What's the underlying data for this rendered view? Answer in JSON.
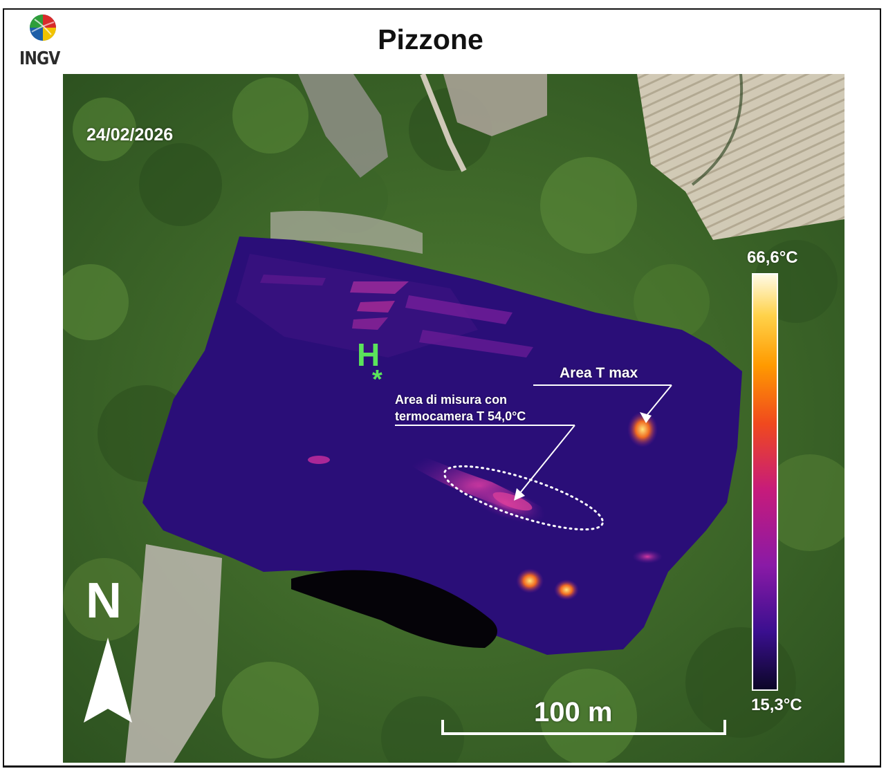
{
  "header": {
    "logo_text": "INGV",
    "title": "Pizzone"
  },
  "map": {
    "date": "24/02/2026",
    "heliport_label": "H",
    "heliport_marker": "*",
    "annotations": {
      "tmax": "Area T max",
      "misura_line1": "Area di misura con",
      "misura_line2": "termocamera T 54,0°C"
    },
    "north_label": "N",
    "scale_bar_label": "100 m"
  },
  "colorbar": {
    "max_label": "66,6°C",
    "min_label": "15,3°C",
    "max_value_c": 66.6,
    "min_value_c": 15.3,
    "colors": [
      "#0b0626",
      "#3a0f8f",
      "#8a1aa6",
      "#c61b7b",
      "#f0491e",
      "#ff9a00",
      "#ffd24a",
      "#fffbe8"
    ]
  },
  "colors": {
    "heliport": "#5be35b",
    "thermal_background": "#2a0e78",
    "vegetation": "#3d6a2a"
  }
}
